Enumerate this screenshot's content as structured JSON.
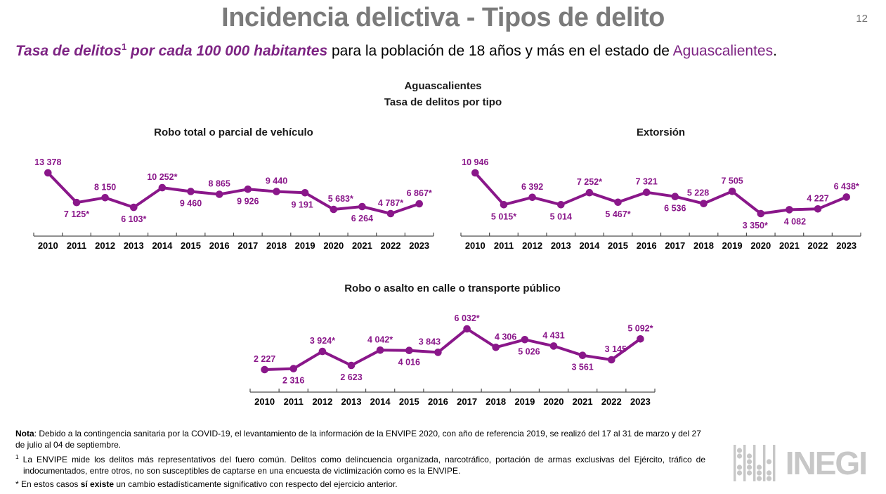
{
  "page": {
    "title": "Incidencia delictiva - Tipos de delito",
    "page_number": "12",
    "subtitle_italic": "Tasa de delitos",
    "subtitle_sup": "1",
    "subtitle_italic2": " por cada 100 000 habitantes",
    "subtitle_rest": " para la población de 18 años y más en el estado de ",
    "subtitle_state": "Aguascalientes",
    "subtitle_end": "."
  },
  "header": {
    "line1": "Aguascalientes",
    "line2": "Tasa de delitos por tipo"
  },
  "chart_data": [
    {
      "type": "line",
      "title": "Robo total o parcial de vehículo",
      "categories": [
        "2010",
        "2011",
        "2012",
        "2013",
        "2014",
        "2015",
        "2016",
        "2017",
        "2018",
        "2019",
        "2020",
        "2021",
        "2022",
        "2023"
      ],
      "values": [
        13378,
        7125,
        8150,
        6103,
        10252,
        9460,
        8865,
        9926,
        9440,
        9191,
        5683,
        6264,
        4787,
        6867
      ],
      "labels": [
        "13 378",
        "7 125*",
        "8 150",
        "6 103*",
        "10 252*",
        "9 460",
        "8 865",
        "9 926",
        "9 440",
        "9 191",
        "5 683*",
        "6 264",
        "4 787*",
        "6 867*"
      ],
      "label_pos": [
        "above",
        "below",
        "above",
        "below",
        "above",
        "below",
        "above",
        "below",
        "above",
        "below",
        "above",
        "below",
        "above",
        "above"
      ],
      "label_dx": [
        0,
        0,
        0,
        0,
        0,
        0,
        0,
        0,
        0,
        -4,
        10,
        0,
        0,
        0
      ],
      "xlabel": "",
      "ylabel": "",
      "y_axis": "hidden",
      "grid": false,
      "legend": "none",
      "line_color": "#8a178a"
    },
    {
      "type": "line",
      "title": "Extorsión",
      "categories": [
        "2010",
        "2011",
        "2012",
        "2013",
        "2014",
        "2015",
        "2016",
        "2017",
        "2018",
        "2019",
        "2020",
        "2021",
        "2022",
        "2023"
      ],
      "values": [
        10946,
        5015,
        6392,
        5014,
        7252,
        5467,
        7321,
        6536,
        5228,
        7505,
        3350,
        4082,
        4227,
        6438
      ],
      "labels": [
        "10 946",
        "5 015*",
        "6 392",
        "5 014",
        "7 252*",
        "5 467*",
        "7 321",
        "6 536",
        "5 228",
        "7 505",
        "3 350*",
        "4 082",
        "4 227",
        "6 438*"
      ],
      "label_pos": [
        "above",
        "below",
        "above",
        "below",
        "above",
        "below",
        "above",
        "below",
        "above",
        "above",
        "below",
        "below",
        "above",
        "above"
      ],
      "label_dx": [
        0,
        0,
        0,
        0,
        0,
        0,
        0,
        0,
        -8,
        0,
        -8,
        8,
        0,
        0
      ],
      "xlabel": "",
      "ylabel": "",
      "y_axis": "hidden",
      "grid": false,
      "legend": "none",
      "line_color": "#8a178a"
    },
    {
      "type": "line",
      "title": "Robo o asalto en calle o transporte público",
      "categories": [
        "2010",
        "2011",
        "2012",
        "2013",
        "2014",
        "2015",
        "2016",
        "2017",
        "2018",
        "2019",
        "2020",
        "2021",
        "2022",
        "2023"
      ],
      "values": [
        2227,
        2316,
        3924,
        2623,
        4042,
        4016,
        3843,
        6032,
        4306,
        5026,
        4431,
        3561,
        3145,
        5092
      ],
      "labels": [
        "2 227",
        "2 316",
        "3 924*",
        "2 623",
        "4 042*",
        "4 016",
        "3 843",
        "6 032*",
        "4 306",
        "5 026",
        "4 431",
        "3 561",
        "3 145",
        "5 092*"
      ],
      "label_pos": [
        "above",
        "below",
        "above",
        "below",
        "above",
        "below",
        "above",
        "above",
        "above",
        "below",
        "above",
        "below",
        "above",
        "above"
      ],
      "label_dx": [
        0,
        0,
        0,
        0,
        0,
        0,
        -12,
        0,
        14,
        6,
        0,
        0,
        6,
        0
      ],
      "xlabel": "",
      "ylabel": "",
      "y_axis": "hidden",
      "grid": false,
      "legend": "none",
      "line_color": "#8a178a"
    }
  ],
  "notes": {
    "nota_bold": "Nota",
    "nota_text": ": Debido a la contingencia sanitaria por la COVID-19, el levantamiento de la información de la ENVIPE 2020, con año de referencia 2019, se realizó del 17 al 31 de marzo y del 27 de julio al 04 de septiembre.",
    "footnote1_sup": "1",
    "footnote1_text": " La ENVIPE mide los delitos más representativos del fuero común. Delitos como delincuencia organizada, narcotráfico, portación de armas exclusivas del Ejército, tráfico de indocumentados, entre otros, no son susceptibles de captarse en una encuesta de victimización como es la ENVIPE.",
    "asterisk_pre": "* En estos casos ",
    "asterisk_bold": "sí existe",
    "asterisk_post": " un cambio estadísticamente significativo con respecto del ejercicio anterior."
  },
  "logo": {
    "text": "INEGI"
  },
  "colors": {
    "chart_purple": "#8a178a",
    "accent_purple": "#7d2483",
    "title_gray": "#7b7b7b",
    "logo_gray": "#c7c7c7",
    "axis_gray": "#4d4d4d"
  }
}
